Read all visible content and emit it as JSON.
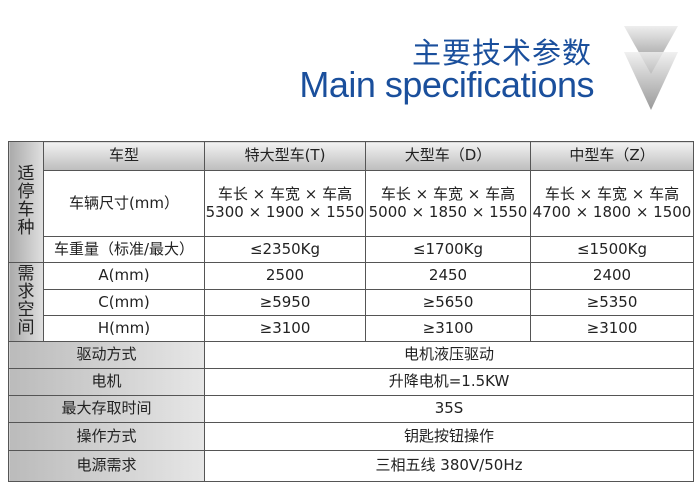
{
  "header": {
    "title_cn": "主要技术参数",
    "title_en": "Main specifications",
    "icon": "down-triangle-icon"
  },
  "table": {
    "group_vehicle": "适停车种",
    "group_space": "需求空间",
    "col_header": "车型",
    "columns": [
      "特大型车(T)",
      "大型车（D）",
      "中型车（Z）"
    ],
    "dims_label": "车辆尺寸(mm）",
    "dims_formula": "车长 × 车宽 × 车高",
    "dims": [
      "5300 × 1900 × 1550",
      "5000 × 1850 × 1550",
      "4700 × 1800 × 1500"
    ],
    "weight_label": "车重量（标准/最大）",
    "weight": [
      "≤2350Kg",
      "≤1700Kg",
      "≤1500Kg"
    ],
    "space_rows": [
      {
        "label": "A(mm)",
        "values": [
          "2500",
          "2450",
          "2400"
        ]
      },
      {
        "label": "C(mm)",
        "values": [
          "≥5950",
          "≥5650",
          "≥5350"
        ]
      },
      {
        "label": "H(mm)",
        "values": [
          "≥3100",
          "≥3100",
          "≥3100"
        ]
      }
    ],
    "general_rows": [
      {
        "label": "驱动方式",
        "value": "电机液压驱动"
      },
      {
        "label": "电机",
        "value": "升降电机=1.5KW"
      },
      {
        "label": "最大存取时间",
        "value": "35S"
      },
      {
        "label": "操作方式",
        "value": "钥匙按钮操作"
      },
      {
        "label": "电源需求",
        "value": "三相五线 380V/50Hz"
      }
    ]
  }
}
